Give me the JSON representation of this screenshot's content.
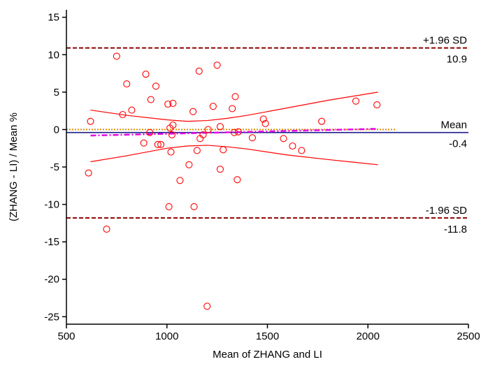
{
  "chart_data": {
    "type": "scatter",
    "title": "",
    "xlabel": "Mean of ZHANG and LI",
    "ylabel": "(ZHANG - LI) / Mean %",
    "xlim": [
      500,
      2500
    ],
    "ylim": [
      -26,
      16
    ],
    "xticks": [
      500,
      1000,
      1500,
      2000,
      2500
    ],
    "yticks": [
      15,
      10,
      5,
      0,
      -5,
      -10,
      -15,
      -20,
      -25
    ],
    "grid": false,
    "legend": "none",
    "reference_lines": [
      {
        "name": "upper-loa",
        "value": 10.9,
        "top_label": "+1.96 SD",
        "bottom_label": "10.9",
        "style": "dashed",
        "color": "#8b0000"
      },
      {
        "name": "mean",
        "value": -0.4,
        "top_label": "Mean",
        "bottom_label": "-0.4",
        "style": "solid",
        "color": "#1a1a8c"
      },
      {
        "name": "lower-loa",
        "value": -11.8,
        "top_label": "-1.96 SD",
        "bottom_label": "-11.8",
        "style": "dashed",
        "color": "#8b0000"
      }
    ],
    "zero_line": {
      "value": 0,
      "x_range": [
        500,
        2140
      ],
      "style": "dotted",
      "color": "#e08a00"
    },
    "regression_line": {
      "x": [
        620,
        2050
      ],
      "y": [
        -0.8,
        0.1
      ],
      "style": "dash-dot",
      "color": "#e600e6"
    },
    "confidence_band_upper": {
      "x": [
        620,
        800,
        1000,
        1100,
        1200,
        1300,
        1400,
        1600,
        1800,
        2050
      ],
      "y": [
        2.6,
        1.9,
        1.3,
        1.1,
        1.2,
        1.5,
        1.9,
        2.9,
        3.9,
        5.0
      ],
      "color": "#ff0000"
    },
    "confidence_band_lower": {
      "x": [
        620,
        800,
        1000,
        1100,
        1200,
        1300,
        1400,
        1600,
        1800,
        2050
      ],
      "y": [
        -4.3,
        -3.5,
        -2.5,
        -2.2,
        -2.1,
        -2.3,
        -2.6,
        -3.4,
        -4.0,
        -4.7
      ],
      "color": "#ff0000"
    },
    "points": [
      {
        "x": 610,
        "y": -5.8
      },
      {
        "x": 620,
        "y": 1.1
      },
      {
        "x": 700,
        "y": -13.3
      },
      {
        "x": 750,
        "y": 9.8
      },
      {
        "x": 780,
        "y": 2.0
      },
      {
        "x": 800,
        "y": 6.1
      },
      {
        "x": 825,
        "y": 2.6
      },
      {
        "x": 885,
        "y": -1.8
      },
      {
        "x": 895,
        "y": 7.4
      },
      {
        "x": 915,
        "y": -0.4
      },
      {
        "x": 920,
        "y": 4.0
      },
      {
        "x": 945,
        "y": 5.8
      },
      {
        "x": 955,
        "y": -2.0
      },
      {
        "x": 970,
        "y": -2.0
      },
      {
        "x": 1005,
        "y": 3.4
      },
      {
        "x": 1010,
        "y": -10.3
      },
      {
        "x": 1015,
        "y": 0.2
      },
      {
        "x": 1020,
        "y": -3.0
      },
      {
        "x": 1025,
        "y": -0.7
      },
      {
        "x": 1030,
        "y": 3.5
      },
      {
        "x": 1030,
        "y": 0.6
      },
      {
        "x": 1065,
        "y": -6.8
      },
      {
        "x": 1110,
        "y": -4.7
      },
      {
        "x": 1130,
        "y": 2.4
      },
      {
        "x": 1135,
        "y": -10.3
      },
      {
        "x": 1150,
        "y": -2.8
      },
      {
        "x": 1160,
        "y": 7.8
      },
      {
        "x": 1165,
        "y": -1.2
      },
      {
        "x": 1180,
        "y": -0.7
      },
      {
        "x": 1200,
        "y": -23.6
      },
      {
        "x": 1205,
        "y": 0.0
      },
      {
        "x": 1230,
        "y": 3.1
      },
      {
        "x": 1250,
        "y": 8.6
      },
      {
        "x": 1265,
        "y": 0.4
      },
      {
        "x": 1265,
        "y": -5.3
      },
      {
        "x": 1280,
        "y": -2.7
      },
      {
        "x": 1325,
        "y": 2.8
      },
      {
        "x": 1335,
        "y": -0.4
      },
      {
        "x": 1340,
        "y": 4.4
      },
      {
        "x": 1350,
        "y": -6.7
      },
      {
        "x": 1355,
        "y": -0.3
      },
      {
        "x": 1425,
        "y": -1.1
      },
      {
        "x": 1480,
        "y": 1.4
      },
      {
        "x": 1490,
        "y": 0.8
      },
      {
        "x": 1580,
        "y": -1.2
      },
      {
        "x": 1625,
        "y": -2.2
      },
      {
        "x": 1670,
        "y": -2.8
      },
      {
        "x": 1770,
        "y": 1.1
      },
      {
        "x": 1940,
        "y": 3.8
      },
      {
        "x": 2045,
        "y": 3.3
      }
    ],
    "marker": {
      "shape": "open-circle",
      "color": "#ff0000"
    },
    "colors": {
      "axis": "#000000",
      "points": "#ff0000"
    }
  }
}
